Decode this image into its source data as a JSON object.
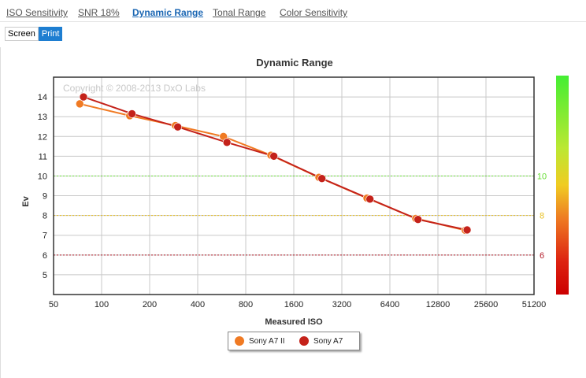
{
  "tabs": [
    {
      "label": "ISO Sensitivity",
      "active": false
    },
    {
      "label": "SNR 18%",
      "active": false
    },
    {
      "label": "Dynamic Range",
      "active": true
    },
    {
      "label": "Tonal Range",
      "active": false
    },
    {
      "label": "Color Sensitivity",
      "active": false
    }
  ],
  "view_toggle": {
    "screen_label": "Screen",
    "print_label": "Print",
    "active": "Print"
  },
  "colors": {
    "sony_a7_ii": "#f07a23",
    "sony_a7": "#c4221a",
    "green_ref": "#66dd33",
    "yellow_ref": "#e8c020",
    "red_ref": "#b31c2a"
  },
  "chart_data": {
    "type": "line",
    "title": "Dynamic Range",
    "xlabel": "Measured ISO",
    "ylabel": "Ev",
    "watermark": "Copyright © 2008-2013 DxO Labs",
    "x_scale": "log2",
    "x_ticks": [
      "50",
      "100",
      "200",
      "400",
      "800",
      "1600",
      "3200",
      "6400",
      "12800",
      "25600",
      "51200"
    ],
    "xlim": [
      50,
      51200
    ],
    "y_ticks": [
      "5",
      "6",
      "7",
      "8",
      "9",
      "10",
      "11",
      "12",
      "13",
      "14"
    ],
    "ylim": [
      4,
      15
    ],
    "grid": true,
    "legend_position": "bottom-center",
    "reference_lines": [
      {
        "value": 10,
        "label": "10",
        "color": "#66dd33"
      },
      {
        "value": 8,
        "label": "8",
        "color": "#e8c020"
      },
      {
        "value": 6,
        "label": "6",
        "color": "#b31c2a"
      }
    ],
    "series": [
      {
        "name": "Sony A7 II",
        "color": "#f07a23",
        "points": [
          [
            73,
            13.65
          ],
          [
            150,
            13.05
          ],
          [
            290,
            12.55
          ],
          [
            580,
            12.0
          ],
          [
            1150,
            11.05
          ],
          [
            2300,
            9.93
          ],
          [
            4600,
            8.88
          ],
          [
            9300,
            7.85
          ],
          [
            19000,
            7.25
          ]
        ]
      },
      {
        "name": "Sony A7",
        "color": "#c4221a",
        "points": [
          [
            77,
            14.0
          ],
          [
            155,
            13.15
          ],
          [
            300,
            12.48
          ],
          [
            610,
            11.7
          ],
          [
            1200,
            11.0
          ],
          [
            2400,
            9.87
          ],
          [
            4800,
            8.83
          ],
          [
            9600,
            7.8
          ],
          [
            19500,
            7.27
          ]
        ]
      }
    ]
  }
}
